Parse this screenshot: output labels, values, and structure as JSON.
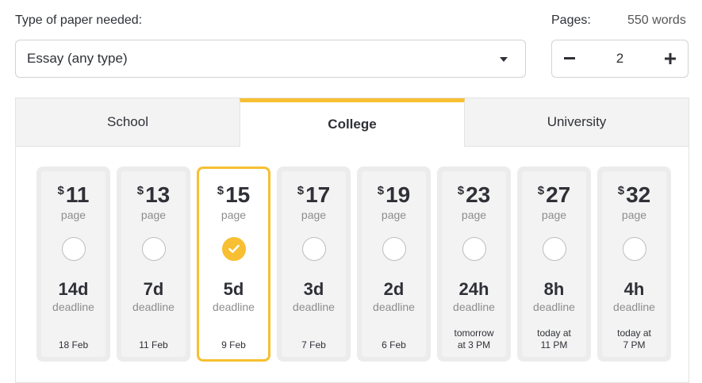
{
  "header": {
    "paper_type_label": "Type of paper needed:",
    "pages_label": "Pages:",
    "words_label": "550 words"
  },
  "paper_type": {
    "selected": "Essay (any type)"
  },
  "pages": {
    "minus": "−",
    "value": "2",
    "plus": "+"
  },
  "tabs": [
    {
      "label": "School",
      "active": false
    },
    {
      "label": "College",
      "active": true
    },
    {
      "label": "University",
      "active": false
    }
  ],
  "accent_color": "#f7bf31",
  "cards": [
    {
      "currency": "$",
      "price": "11",
      "per": "page",
      "duration": "14d",
      "deadline_label": "deadline",
      "date": "18 Feb",
      "selected": false
    },
    {
      "currency": "$",
      "price": "13",
      "per": "page",
      "duration": "7d",
      "deadline_label": "deadline",
      "date": "11 Feb",
      "selected": false
    },
    {
      "currency": "$",
      "price": "15",
      "per": "page",
      "duration": "5d",
      "deadline_label": "deadline",
      "date": "9 Feb",
      "selected": true
    },
    {
      "currency": "$",
      "price": "17",
      "per": "page",
      "duration": "3d",
      "deadline_label": "deadline",
      "date": "7 Feb",
      "selected": false
    },
    {
      "currency": "$",
      "price": "19",
      "per": "page",
      "duration": "2d",
      "deadline_label": "deadline",
      "date": "6 Feb",
      "selected": false
    },
    {
      "currency": "$",
      "price": "23",
      "per": "page",
      "duration": "24h",
      "deadline_label": "deadline",
      "date_line1": "tomorrow",
      "date_line2": "at 3 PM",
      "selected": false
    },
    {
      "currency": "$",
      "price": "27",
      "per": "page",
      "duration": "8h",
      "deadline_label": "deadline",
      "date_line1": "today at",
      "date_line2": "11 PM",
      "selected": false
    },
    {
      "currency": "$",
      "price": "32",
      "per": "page",
      "duration": "4h",
      "deadline_label": "deadline",
      "date_line1": "today at",
      "date_line2": "7 PM",
      "selected": false
    }
  ]
}
